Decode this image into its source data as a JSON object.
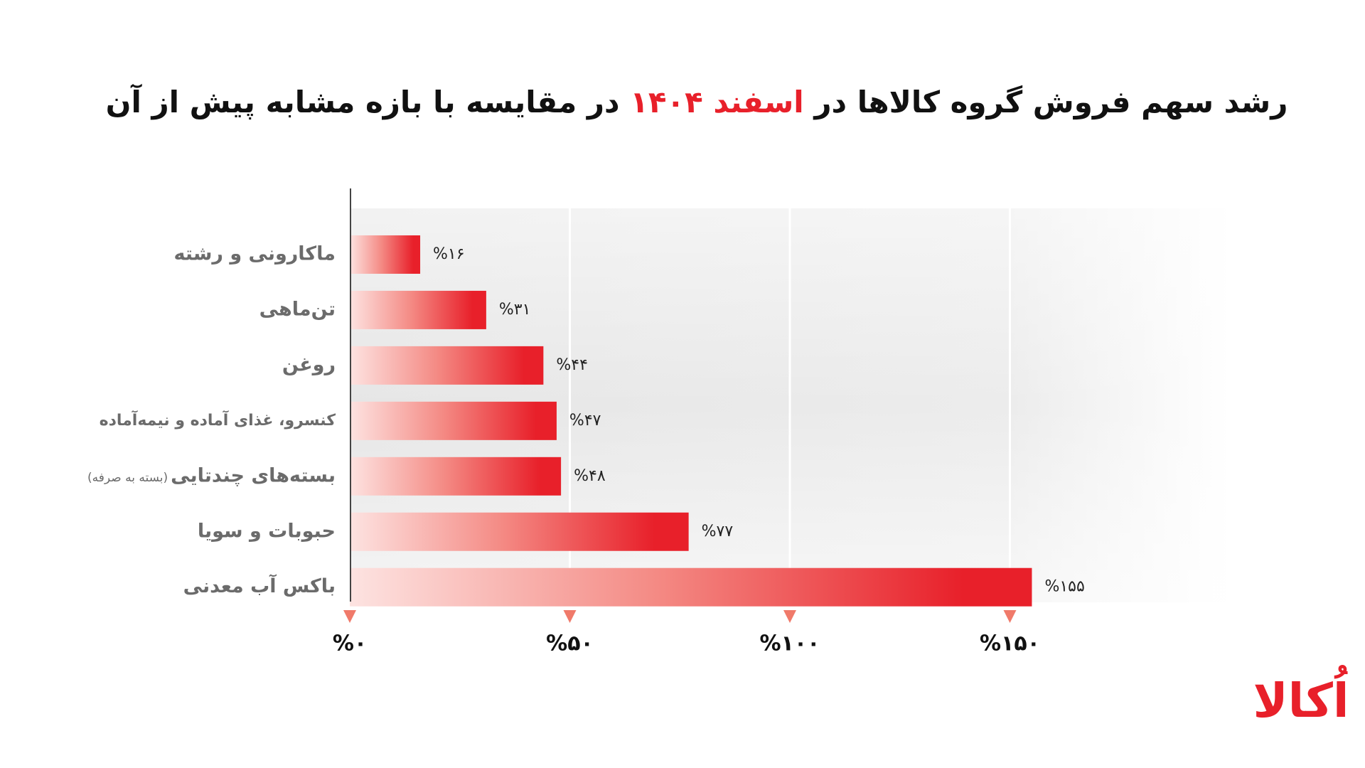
{
  "chart_data": {
    "type": "bar",
    "orientation": "horizontal",
    "title_parts": [
      "رشد سهم فروش گروه کالاها در ",
      "اسفند ۱۴۰۴",
      " در مقایسه با بازه مشابه پیش از آن"
    ],
    "title_highlight_index": 1,
    "title_color": "#111111",
    "highlight_color": "#e8202a",
    "categories": [
      "ماکارونی و رشته",
      "تن‌ماهی",
      "روغن",
      "کنسرو، غذای آماده و نیمه‌آماده",
      "بسته‌های چندتایی",
      "حبوبات و سویا",
      "باکس آب معدنی"
    ],
    "category_notes": [
      null,
      null,
      null,
      null,
      "(بسته به صرفه)",
      null,
      null
    ],
    "values": [
      16,
      31,
      44,
      47,
      48,
      77,
      155
    ],
    "value_labels": [
      "%۱۶",
      "%۳۱",
      "%۴۴",
      "%۴۷",
      "%۴۸",
      "%۷۷",
      "%۱۵۵"
    ],
    "color": "#e8202a",
    "xlim": [
      0,
      200
    ],
    "xticks": [
      {
        "value": 0,
        "label": "%۰"
      },
      {
        "value": 50,
        "label": "%۵۰"
      },
      {
        "value": 100,
        "label": "%۱۰۰"
      },
      {
        "value": 150,
        "label": "%۱۵۰"
      }
    ],
    "tick_marker_color": "#f07a6a",
    "grid": true,
    "logo": "اُکالا"
  }
}
